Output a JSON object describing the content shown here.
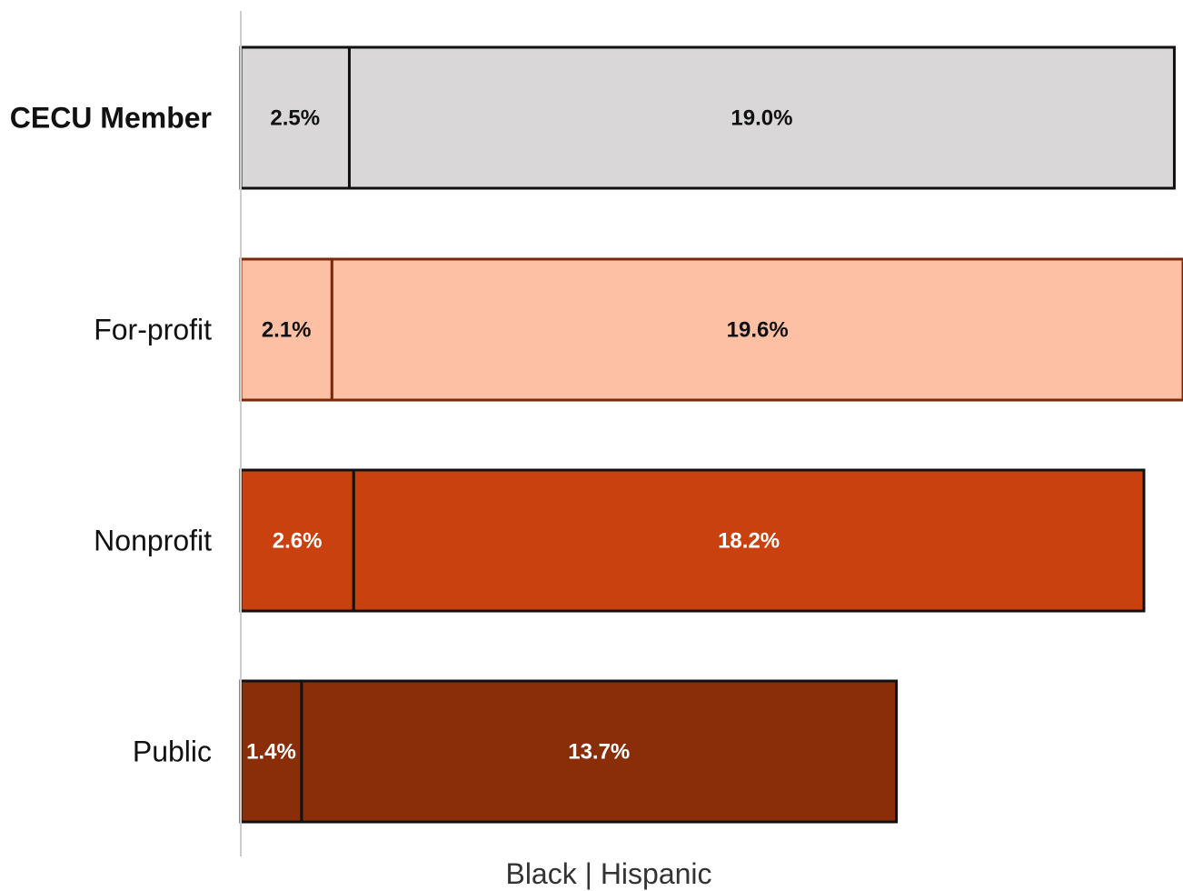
{
  "chart_data": {
    "type": "bar",
    "orientation": "horizontal",
    "stacked": true,
    "xlabel": "Black | Hispanic",
    "ylabel": "",
    "xlim": [
      0,
      21.7
    ],
    "grid": false,
    "legend": "none",
    "categories": [
      "CECU Member",
      "For-profit",
      "Nonprofit",
      "Public"
    ],
    "series": [
      {
        "values": [
          2.5,
          2.1,
          2.6,
          1.4
        ]
      },
      {
        "values": [
          19.0,
          19.6,
          18.2,
          13.7
        ]
      }
    ],
    "value_labels": [
      [
        "2.5%",
        "19.0%"
      ],
      [
        "2.1%",
        "19.6%"
      ],
      [
        "2.6%",
        "18.2%"
      ],
      [
        "1.4%",
        "13.7%"
      ]
    ],
    "bar_colors": [
      "#d9d7d8",
      "#fdc0a4",
      "#c8410f",
      "#8a2e0a"
    ],
    "border_colors": [
      "#111111",
      "#7a2a0a",
      "#111111",
      "#111111"
    ],
    "label_colors": [
      "#111111",
      "#111111",
      "#ffffff",
      "#ffffff"
    ],
    "axis_color": "#cccccc"
  }
}
